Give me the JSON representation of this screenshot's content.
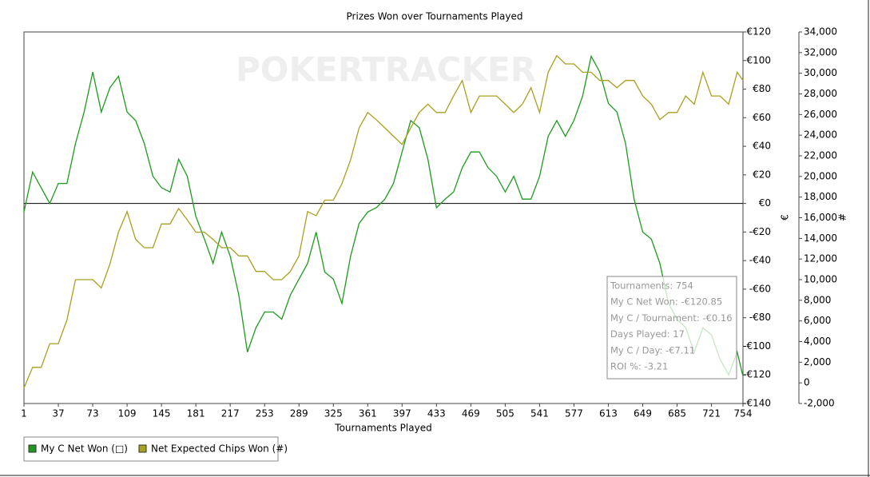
{
  "chart_data": {
    "type": "line",
    "title": "Prizes Won over Tournaments Played",
    "watermark": "POKERTRACKER",
    "x_label": "Tournaments Played",
    "y_label": "€",
    "y2_label": "#",
    "xlim": [
      1,
      754
    ],
    "xticks": [
      1,
      37,
      73,
      109,
      145,
      181,
      217,
      253,
      289,
      325,
      361,
      397,
      433,
      469,
      505,
      541,
      577,
      613,
      649,
      685,
      721,
      754
    ],
    "ylim": [
      -140,
      120
    ],
    "yticks": [
      {
        "value": 120,
        "label": "€120"
      },
      {
        "value": 100,
        "label": "€100"
      },
      {
        "value": 80,
        "label": "€80"
      },
      {
        "value": 60,
        "label": "€60"
      },
      {
        "value": 40,
        "label": "€40"
      },
      {
        "value": 20,
        "label": "€20"
      },
      {
        "value": 0,
        "label": "€0"
      },
      {
        "value": -20,
        "label": "-€20"
      },
      {
        "value": -40,
        "label": "-€40"
      },
      {
        "value": -60,
        "label": "-€60"
      },
      {
        "value": -80,
        "label": "-€80"
      },
      {
        "value": -100,
        "label": "-€100"
      },
      {
        "value": -120,
        "label": "-€120"
      },
      {
        "value": -140,
        "label": "-€140"
      }
    ],
    "y2lim": [
      -2000,
      34000
    ],
    "y2ticks": [
      {
        "value": 34000,
        "label": "34,000"
      },
      {
        "value": 32000,
        "label": "32,000"
      },
      {
        "value": 30000,
        "label": "30,000"
      },
      {
        "value": 28000,
        "label": "28,000"
      },
      {
        "value": 26000,
        "label": "26,000"
      },
      {
        "value": 24000,
        "label": "24,000"
      },
      {
        "value": 22000,
        "label": "22,000"
      },
      {
        "value": 20000,
        "label": "20,000"
      },
      {
        "value": 18000,
        "label": "18,000"
      },
      {
        "value": 16000,
        "label": "16,000"
      },
      {
        "value": 14000,
        "label": "14,000"
      },
      {
        "value": 12000,
        "label": "12,000"
      },
      {
        "value": 10000,
        "label": "10,000"
      },
      {
        "value": 8000,
        "label": "8,000"
      },
      {
        "value": 6000,
        "label": "6,000"
      },
      {
        "value": 4000,
        "label": "4,000"
      },
      {
        "value": 2000,
        "label": "2,000"
      },
      0,
      {
        "value": -2000,
        "label": "-2,000"
      }
    ],
    "x": [
      1,
      10,
      19,
      28,
      37,
      46,
      55,
      64,
      73,
      82,
      91,
      100,
      109,
      118,
      127,
      136,
      145,
      154,
      163,
      172,
      181,
      190,
      199,
      208,
      217,
      226,
      235,
      244,
      253,
      262,
      271,
      280,
      289,
      298,
      307,
      316,
      325,
      334,
      343,
      352,
      361,
      370,
      379,
      388,
      397,
      406,
      415,
      424,
      433,
      442,
      451,
      460,
      469,
      478,
      487,
      496,
      505,
      514,
      523,
      532,
      541,
      550,
      559,
      568,
      577,
      586,
      595,
      604,
      613,
      622,
      631,
      640,
      649,
      658,
      667,
      676,
      685,
      694,
      703,
      712,
      721,
      730,
      739,
      748,
      754
    ],
    "series": [
      {
        "name": "My C Net Won (□)",
        "color": "#1f9a1f",
        "axis": "y",
        "values": [
          -6,
          22,
          11,
          0,
          14,
          14,
          42,
          64,
          92,
          64,
          81,
          89,
          64,
          58,
          42,
          19,
          11,
          8,
          31,
          19,
          -9,
          -25,
          -42,
          -20,
          -37,
          -64,
          -104,
          -87,
          -76,
          -76,
          -81,
          -64,
          -53,
          -42,
          -20,
          -48,
          -53,
          -70,
          -37,
          -14,
          -6,
          -3,
          3,
          14,
          36,
          58,
          53,
          31,
          -3,
          3,
          8,
          25,
          36,
          36,
          25,
          19,
          8,
          19,
          3,
          3,
          19,
          47,
          58,
          47,
          58,
          75,
          103,
          92,
          70,
          64,
          42,
          3,
          -20,
          -25,
          -42,
          -70,
          -81,
          -87,
          -104,
          -87,
          -92,
          -109,
          -120,
          -104,
          -121
        ]
      },
      {
        "name": "Net Expected Chips Won (#)",
        "color": "#a8a020",
        "axis": "y2",
        "values": [
          -500,
          1500,
          1500,
          3800,
          3800,
          6100,
          10000,
          10000,
          10000,
          9200,
          11500,
          14600,
          16600,
          13900,
          13100,
          13100,
          15400,
          15400,
          16900,
          15800,
          14600,
          14600,
          13900,
          13100,
          13100,
          12300,
          12300,
          10800,
          10800,
          10000,
          10000,
          10800,
          12300,
          16600,
          16200,
          17700,
          17700,
          19300,
          21600,
          24700,
          26200,
          25500,
          24700,
          23900,
          23100,
          24700,
          26200,
          27000,
          26200,
          26200,
          27800,
          29300,
          26200,
          27800,
          27800,
          27800,
          27000,
          26200,
          27000,
          28600,
          26200,
          30100,
          31700,
          30900,
          30900,
          30100,
          30100,
          29300,
          29300,
          28600,
          29300,
          29300,
          27800,
          27000,
          25500,
          26200,
          26200,
          27800,
          27000,
          30100,
          27800,
          27800,
          27000,
          30100,
          29300
        ]
      }
    ],
    "tooltip": [
      "Tournaments: 754",
      "My C Net Won: -€120.85",
      "My C / Tournament: -€0.16",
      "Days Played: 17",
      "My C / Day: -€7.11",
      "ROI %: -3.21"
    ]
  }
}
